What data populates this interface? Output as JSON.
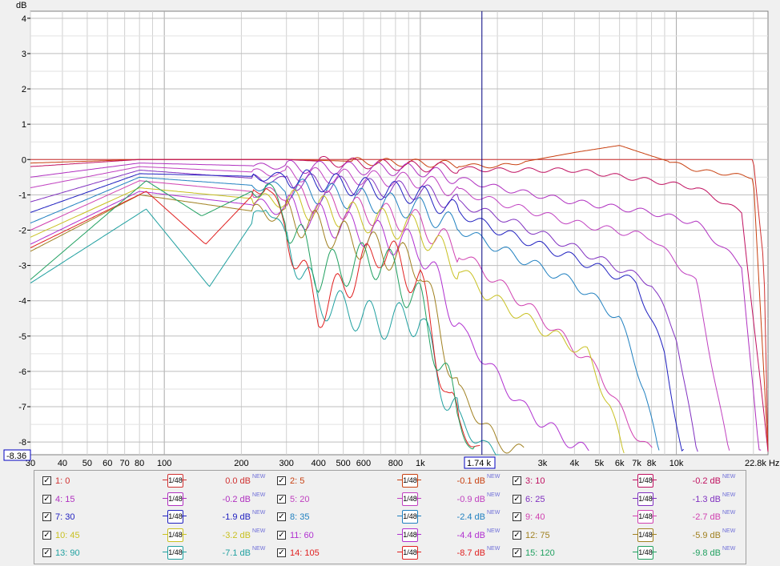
{
  "chart_data": {
    "type": "line",
    "ylabel": "dB",
    "xunit": "Hz",
    "xscale": "log",
    "xlim": [
      30,
      22800
    ],
    "ylim": [
      -8.36,
      4.2
    ],
    "yticks": [
      4,
      3,
      2,
      1,
      0,
      -1,
      -2,
      -3,
      -4,
      -5,
      -6,
      -7,
      -8
    ],
    "ytick_labels": [
      "4",
      "3",
      "2",
      "1",
      "0",
      "-1",
      "-2",
      "-3",
      "-4",
      "-5",
      "-6",
      "-7",
      "-8"
    ],
    "xticks": [
      30,
      40,
      50,
      60,
      70,
      80,
      100,
      200,
      300,
      400,
      500,
      600,
      800,
      1000,
      3000,
      4000,
      5000,
      6000,
      7000,
      8000,
      10000,
      22800
    ],
    "xtick_labels": [
      "30",
      "40",
      "50",
      "60",
      "70",
      "80",
      "100",
      "200",
      "300",
      "400",
      "500",
      "600",
      "800",
      "1k",
      "3k",
      "4k",
      "5k",
      "6k",
      "7k",
      "8k",
      "10k",
      "22.8k Hz"
    ],
    "grid": true,
    "cursor": {
      "x": 1740,
      "label": "1.74 k",
      "y_label": "-8.36"
    },
    "series": [
      {
        "name": "1: 0",
        "color": "#d03030",
        "smoothing": "1/48",
        "level": "0.0 dB",
        "x": [
          30,
          100,
          1000,
          5000,
          10000,
          15000,
          20000,
          22000,
          22800
        ],
        "values": [
          0,
          0,
          0,
          0,
          0,
          0,
          0,
          -3,
          -8.3
        ]
      },
      {
        "name": "2: 5",
        "color": "#c84010",
        "smoothing": "1/48",
        "level": "-0.1 dB",
        "x": [
          30,
          80,
          300,
          1000,
          2000,
          4000,
          6000,
          8000,
          12000,
          20000,
          22800
        ],
        "values": [
          -0.1,
          0,
          0,
          -0.1,
          -0.2,
          0.2,
          0.4,
          0.1,
          -0.3,
          -0.5,
          -8.3
        ]
      },
      {
        "name": "3: 10",
        "color": "#c01060",
        "smoothing": "1/48",
        "level": "-0.2 dB",
        "x": [
          30,
          80,
          300,
          1000,
          2000,
          4000,
          8000,
          12000,
          18000,
          22800
        ],
        "values": [
          -0.2,
          0,
          0,
          -0.2,
          -0.3,
          -0.3,
          -0.6,
          -0.8,
          -1.5,
          -8.3
        ]
      },
      {
        "name": "4: 15",
        "color": "#b030c0",
        "smoothing": "1/48",
        "level": "-0.2 dB",
        "x": [
          30,
          80,
          300,
          1000,
          2000,
          4000,
          8000,
          12000,
          18000,
          21000
        ],
        "values": [
          -0.5,
          -0.1,
          -0.2,
          -0.3,
          -0.8,
          -1.2,
          -1.5,
          -1.8,
          -3,
          -8.3
        ]
      },
      {
        "name": "5: 20",
        "color": "#c040c0",
        "smoothing": "1/48",
        "level": "-0.9 dB",
        "x": [
          30,
          80,
          300,
          1000,
          2000,
          4000,
          8000,
          12000,
          16000
        ],
        "values": [
          -0.8,
          -0.2,
          -0.4,
          -0.6,
          -1.2,
          -1.8,
          -2.2,
          -3.5,
          -8.3
        ]
      },
      {
        "name": "6: 25",
        "color": "#8030c0",
        "smoothing": "1/48",
        "level": "-1.3 dB",
        "x": [
          30,
          80,
          300,
          1000,
          2000,
          4000,
          8000,
          10000,
          12000
        ],
        "values": [
          -1.2,
          -0.3,
          -0.6,
          -0.9,
          -1.6,
          -2.5,
          -3.5,
          -5,
          -8.3
        ]
      },
      {
        "name": "7: 30",
        "color": "#2020c0",
        "smoothing": "1/48",
        "level": "-1.9 dB",
        "x": [
          30,
          80,
          300,
          1000,
          2000,
          4000,
          7000,
          9000,
          10500
        ],
        "values": [
          -1.5,
          -0.4,
          -0.5,
          -1.0,
          -2.0,
          -2.8,
          -3.5,
          -5.5,
          -8.3
        ]
      },
      {
        "name": "8: 35",
        "color": "#2080c0",
        "smoothing": "1/48",
        "level": "-2.4 dB",
        "x": [
          30,
          80,
          300,
          1000,
          2000,
          4000,
          6000,
          7500,
          8500
        ],
        "values": [
          -1.8,
          -0.5,
          -0.8,
          -1.4,
          -2.5,
          -3.5,
          -4.5,
          -6.5,
          -8.3
        ]
      },
      {
        "name": "9: 40",
        "color": "#d040b0",
        "smoothing": "1/48",
        "level": "-2.7 dB",
        "x": [
          30,
          80,
          300,
          1000,
          1800,
          3000,
          5000,
          6500,
          8000
        ],
        "values": [
          -2.0,
          -0.6,
          -1.0,
          -1.8,
          -3.2,
          -4.5,
          -6,
          -7.5,
          -8.3
        ]
      },
      {
        "name": "10: 45",
        "color": "#c8c020",
        "smoothing": "1/48",
        "level": "-3.2 dB",
        "x": [
          30,
          80,
          300,
          1000,
          1800,
          3000,
          4500,
          5500,
          6200
        ],
        "values": [
          -2.2,
          -0.8,
          -1.2,
          -2.0,
          -3.8,
          -4.8,
          -5.5,
          -7,
          -8.3
        ]
      },
      {
        "name": "11: 60",
        "color": "#b030d0",
        "smoothing": "1/48",
        "level": "-4.4 dB",
        "x": [
          30,
          80,
          300,
          1000,
          1500,
          2500,
          3500,
          4500
        ],
        "values": [
          -2.4,
          -0.9,
          -1.4,
          -2.5,
          -5,
          -7,
          -7.8,
          -8.3
        ]
      },
      {
        "name": "12: 75",
        "color": "#a08020",
        "smoothing": "1/48",
        "level": "-5.9 dB",
        "x": [
          30,
          80,
          300,
          1000,
          1400,
          2000,
          2500
        ],
        "values": [
          -2.6,
          -1.0,
          -1.6,
          -3,
          -6.5,
          -8,
          -8.3
        ]
      },
      {
        "name": "13: 90",
        "color": "#20a0a0",
        "smoothing": "1/48",
        "level": "-7.1 dB",
        "x": [
          30,
          85,
          150,
          250,
          400,
          700,
          1000,
          1300,
          1800,
          2000
        ],
        "values": [
          -3.5,
          -1.4,
          -3.6,
          -1.2,
          -4,
          -4.6,
          -4.5,
          -7,
          -8.2,
          -8.3
        ]
      },
      {
        "name": "14: 105",
        "color": "#e02020",
        "smoothing": "1/48",
        "level": "-8.7 dB",
        "x": [
          30,
          85,
          145,
          250,
          400,
          700,
          1000,
          1300,
          1700
        ],
        "values": [
          -2.5,
          -0.9,
          -2.4,
          -0.6,
          -4.3,
          -2.5,
          -3.5,
          -7,
          -8.3
        ]
      },
      {
        "name": "15: 120",
        "color": "#20a060",
        "smoothing": "1/48",
        "level": "-9.8 dB",
        "x": [
          30,
          85,
          140,
          250,
          400,
          700,
          1000,
          1300,
          1600
        ],
        "values": [
          -3.4,
          -0.6,
          -1.6,
          -0.7,
          -3.2,
          -2.8,
          -4.1,
          -6.5,
          -8.3
        ]
      }
    ]
  },
  "legend_new_badge": "NEW",
  "cursor_line_color": "#000080"
}
